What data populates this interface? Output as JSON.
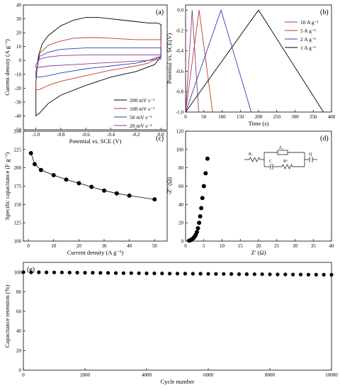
{
  "figure": {
    "panel_a_tag": "(a)",
    "panel_b_tag": "(b)",
    "panel_c_tag": "(c)",
    "panel_d_tag": "(d)",
    "panel_e_tag": "(e)",
    "circuit": {
      "r1": "R₁",
      "zw": "Zᵤ",
      "c": "C",
      "rct": "Rᶜᵗ",
      "q": "Q"
    }
  },
  "chart_data": [
    {
      "type": "line",
      "panel": "a",
      "xlabel": "Potential vs. SCE (V)",
      "ylabel": "Current density (A g⁻¹)",
      "xlim": [
        -1.1,
        0.05
      ],
      "ylim": [
        -50,
        40
      ],
      "xticks": [
        -1.0,
        -0.8,
        -0.6,
        -0.4,
        -0.2,
        0.0
      ],
      "xtick_labels": [
        "-1.0",
        "-0.8",
        "-0.6",
        "-0.4",
        "-0.2",
        "0.0"
      ],
      "yticks": [
        -50,
        -40,
        -30,
        -20,
        -10,
        0,
        10,
        20,
        30,
        40
      ],
      "ytick_labels": [
        "-50",
        "-40",
        "-30",
        "-20",
        "-10",
        "0",
        "10",
        "20",
        "30",
        "40"
      ],
      "legend_position": "bottom-right",
      "series": [
        {
          "name": "200 mV s⁻¹",
          "color": "#000000",
          "x": [
            -1.0,
            -0.98,
            -0.95,
            -0.9,
            -0.8,
            -0.7,
            -0.6,
            -0.5,
            -0.4,
            -0.3,
            -0.2,
            -0.1,
            -0.03,
            0.0,
            0.0,
            -0.05,
            -0.2,
            -0.4,
            -0.6,
            -0.8,
            -0.9,
            -0.97,
            -1.0,
            -1.0
          ],
          "y": [
            -15,
            3,
            12,
            18,
            25,
            29,
            31,
            31,
            30,
            29,
            28,
            27,
            27,
            26,
            3,
            -3,
            -8,
            -12,
            -18,
            -25,
            -31,
            -38,
            -40,
            -15
          ]
        },
        {
          "name": "100 mV s⁻¹",
          "color": "#c0392b",
          "x": [
            -1.0,
            -0.97,
            -0.9,
            -0.8,
            -0.7,
            -0.6,
            -0.5,
            -0.4,
            -0.3,
            -0.2,
            -0.1,
            0.0,
            0.0,
            -0.1,
            -0.2,
            -0.4,
            -0.6,
            -0.8,
            -0.9,
            -0.97,
            -1.0,
            -1.0
          ],
          "y": [
            -12,
            5,
            11,
            14,
            16,
            16.5,
            16.5,
            16,
            15.5,
            15,
            15,
            15,
            3,
            -2,
            -4,
            -7,
            -11,
            -15,
            -18,
            -21,
            -21,
            -12
          ]
        },
        {
          "name": "50 mV s⁻¹",
          "color": "#2b3fbf",
          "x": [
            -1.0,
            -0.97,
            -0.9,
            -0.8,
            -0.6,
            -0.4,
            -0.2,
            -0.1,
            0.0,
            0.0,
            -0.1,
            -0.2,
            -0.4,
            -0.6,
            -0.8,
            -0.9,
            -0.97,
            -1.0,
            -1.0
          ],
          "y": [
            -8,
            3,
            6,
            8,
            9,
            9,
            9,
            9,
            9,
            3,
            0,
            -2,
            -4,
            -6,
            -9,
            -11,
            -12,
            -12,
            -8
          ]
        },
        {
          "name": "20 mV s⁻¹",
          "color": "#8e3a8e",
          "x": [
            -1.0,
            -0.97,
            -0.9,
            -0.8,
            -0.6,
            -0.4,
            -0.2,
            -0.05,
            0.0,
            0.0,
            -0.1,
            -0.3,
            -0.5,
            -0.7,
            -0.9,
            -0.97,
            -1.0,
            -1.0
          ],
          "y": [
            -3,
            1,
            2.5,
            3.5,
            4,
            4,
            4,
            4,
            4,
            1,
            0,
            -1,
            -2,
            -3,
            -4,
            -5,
            -5,
            -3
          ]
        }
      ]
    },
    {
      "type": "line",
      "panel": "b",
      "xlabel": "Time (s)",
      "ylabel": "Potential vs. SCE(V)",
      "xlim": [
        0,
        400
      ],
      "ylim": [
        -1.0,
        0.05
      ],
      "xticks": [
        0,
        50,
        100,
        150,
        200,
        250,
        300,
        350,
        400
      ],
      "xtick_labels": [
        "0",
        "50",
        "100",
        "150",
        "200",
        "250",
        "300",
        "350",
        "400"
      ],
      "yticks": [
        -1.0,
        -0.8,
        -0.6,
        -0.4,
        -0.2,
        0.0
      ],
      "ytick_labels": [
        "-1.0",
        "-0.8",
        "-0.6",
        "-0.4",
        "-0.2",
        "0.0"
      ],
      "legend_position": "right",
      "series": [
        {
          "name": "10 A g⁻¹",
          "color": "#8e3a8e",
          "x": [
            0,
            18,
            36
          ],
          "y": [
            -1.0,
            0.0,
            -1.0
          ]
        },
        {
          "name": "5 A g⁻¹",
          "color": "#c0392b",
          "x": [
            0,
            37,
            74
          ],
          "y": [
            -1.0,
            0.0,
            -1.0
          ]
        },
        {
          "name": "2 A g⁻¹",
          "color": "#2b3fbf",
          "x": [
            0,
            97,
            180
          ],
          "y": [
            -1.0,
            0.0,
            -1.0
          ]
        },
        {
          "name": "1 A g⁻¹",
          "color": "#000000",
          "x": [
            0,
            200,
            378
          ],
          "y": [
            -1.0,
            0.0,
            -1.0
          ]
        }
      ]
    },
    {
      "type": "scatter",
      "panel": "c",
      "xlabel": "Current density (A g⁻¹)",
      "ylabel": "Specific capacitance (F g⁻¹)",
      "xlim": [
        -2,
        55
      ],
      "ylim": [
        100,
        250
      ],
      "xticks": [
        0,
        10,
        20,
        30,
        40,
        50
      ],
      "xtick_labels": [
        "0",
        "10",
        "20",
        "30",
        "40",
        "50"
      ],
      "yticks": [
        100,
        125,
        150,
        175,
        200,
        225,
        250
      ],
      "ytick_labels": [
        "100",
        "125",
        "150",
        "175",
        "200",
        "225",
        "250"
      ],
      "series": [
        {
          "name": "",
          "color": "#000000",
          "x": [
            1,
            2.5,
            5,
            10,
            15,
            20,
            25,
            30,
            35,
            40,
            50
          ],
          "y": [
            220,
            205,
            197,
            190,
            184,
            179,
            174,
            169,
            165,
            162,
            157
          ]
        }
      ]
    },
    {
      "type": "scatter",
      "panel": "d",
      "xlabel": "Z' (Ω)",
      "ylabel": "-Z'' (Ω)",
      "xlim": [
        0,
        40
      ],
      "ylim": [
        0,
        120
      ],
      "xticks": [
        0,
        5,
        10,
        15,
        20,
        25,
        30,
        35,
        40
      ],
      "xtick_labels": [
        "0",
        "5",
        "10",
        "15",
        "20",
        "25",
        "30",
        "35",
        "40"
      ],
      "yticks": [
        0,
        20,
        40,
        60,
        80,
        100,
        120
      ],
      "ytick_labels": [
        "0",
        "20",
        "40",
        "60",
        "80",
        "100",
        "120"
      ],
      "series": [
        {
          "name": "",
          "color": "#000000",
          "x": [
            1.0,
            1.3,
            1.6,
            1.9,
            2.2,
            2.5,
            2.8,
            3.1,
            3.4,
            3.7,
            4.0,
            4.3,
            4.6,
            5.0,
            5.5,
            6.0
          ],
          "y": [
            0.5,
            1.0,
            1.5,
            2.5,
            3.5,
            5,
            7,
            10,
            14,
            20,
            27,
            36,
            47,
            60,
            74,
            90
          ]
        }
      ]
    },
    {
      "type": "scatter",
      "panel": "e",
      "xlabel": "Cycle number",
      "ylabel": "Capacitance retention (%)",
      "xlim": [
        0,
        10000
      ],
      "ylim": [
        0,
        110
      ],
      "xticks": [
        0,
        2000,
        4000,
        6000,
        8000,
        10000
      ],
      "xtick_labels": [
        "0",
        "2000",
        "4000",
        "6000",
        "8000",
        "10000"
      ],
      "yticks": [
        0,
        20,
        40,
        60,
        80,
        100
      ],
      "ytick_labels": [
        "0",
        "20",
        "40",
        "60",
        "80",
        "100"
      ],
      "series": [
        {
          "name": "",
          "color": "#000000",
          "x": [
            0,
            250,
            500,
            750,
            1000,
            1250,
            1500,
            1750,
            2000,
            2250,
            2500,
            2750,
            3000,
            3250,
            3500,
            3750,
            4000,
            4250,
            4500,
            4750,
            5000,
            5250,
            5500,
            5750,
            6000,
            6250,
            6500,
            6750,
            7000,
            7250,
            7500,
            7750,
            8000,
            8250,
            8500,
            8750,
            9000,
            9250,
            9500,
            9750,
            10000
          ],
          "y": [
            100,
            99.9,
            99.9,
            99.8,
            99.7,
            99.7,
            99.6,
            99.5,
            99.4,
            99.4,
            99.3,
            99.2,
            99.1,
            99.0,
            99.0,
            98.9,
            98.8,
            98.8,
            98.7,
            98.6,
            98.6,
            98.5,
            98.4,
            98.4,
            98.3,
            98.2,
            98.2,
            98.1,
            98.0,
            98.0,
            97.9,
            97.9,
            97.8,
            97.7,
            97.7,
            97.6,
            97.6,
            97.5,
            97.5,
            97.4,
            97.3
          ]
        }
      ]
    }
  ]
}
